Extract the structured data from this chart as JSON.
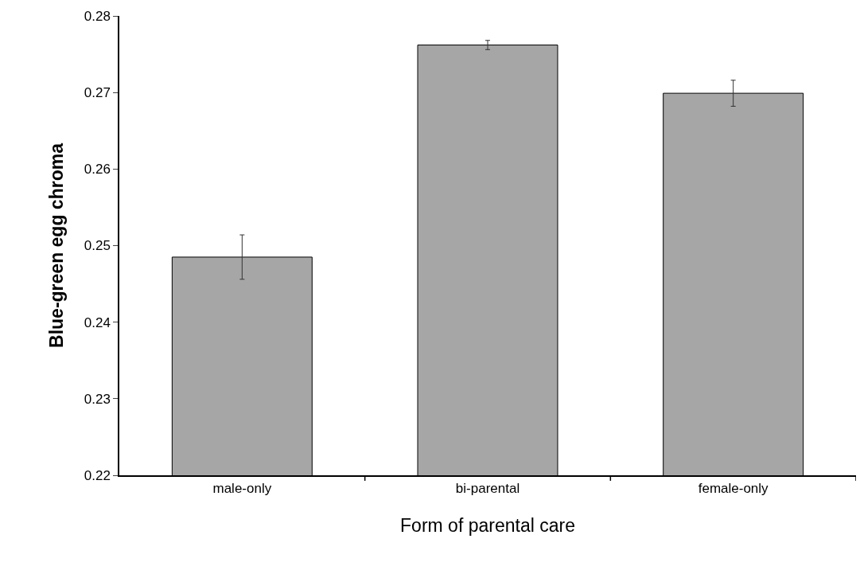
{
  "chart_data": {
    "type": "bar",
    "xlabel": "Form of parental care",
    "ylabel": "Blue-green egg chroma",
    "categories": [
      "male-only",
      "bi-parental",
      "female-only"
    ],
    "values": [
      0.2485,
      0.2762,
      0.2699
    ],
    "errors": [
      0.0029,
      0.0006,
      0.0017
    ],
    "color": "#a6a6a6",
    "ylim": [
      0.22,
      0.28
    ],
    "yticks": [
      0.22,
      0.23,
      0.24,
      0.25,
      0.26,
      0.27,
      0.28
    ],
    "grid": false,
    "legend": false
  }
}
